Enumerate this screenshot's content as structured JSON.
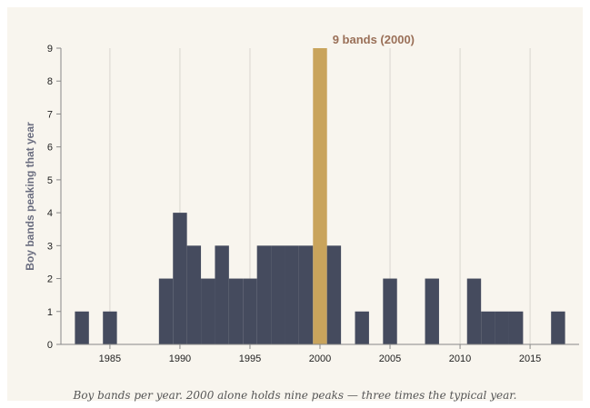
{
  "chart_data": {
    "type": "bar",
    "ylabel": "Boy bands peaking that year",
    "xlim": [
      1981.5,
      2018.5
    ],
    "ylim": [
      0,
      9
    ],
    "x_ticks": [
      1985,
      1990,
      1995,
      2000,
      2005,
      2010,
      2015
    ],
    "y_ticks": [
      0,
      1,
      2,
      3,
      4,
      5,
      6,
      7,
      8,
      9
    ],
    "grid": "vertical",
    "x": [
      1983,
      1985,
      1989,
      1990,
      1991,
      1992,
      1993,
      1994,
      1995,
      1996,
      1997,
      1998,
      1999,
      2000,
      2001,
      2003,
      2005,
      2008,
      2011,
      2012,
      2013,
      2014,
      2017
    ],
    "values": [
      1,
      1,
      2,
      4,
      3,
      2,
      3,
      2,
      2,
      3,
      3,
      3,
      3,
      9,
      3,
      1,
      2,
      2,
      2,
      1,
      1,
      1,
      1
    ],
    "highlight": {
      "x": 2000,
      "color": "#c9a45c"
    },
    "bar_color": "#454b5e",
    "annotation": "9 bands (2000)"
  },
  "caption": "Boy bands per year. 2000 alone holds nine peaks — three times the typical year."
}
